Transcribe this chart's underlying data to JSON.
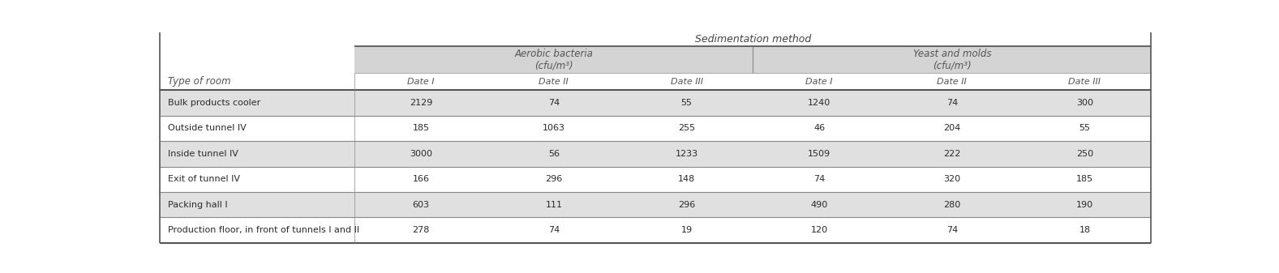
{
  "title": "Sedimentation method",
  "group_headers": [
    "Aerobic bacteria\n(cfu/m³)",
    "Yeast and molds\n(cfu/m³)"
  ],
  "date_headers": [
    "Date I",
    "Date II",
    "Date III",
    "Date I",
    "Date II",
    "Date III"
  ],
  "row_label": "Type of room",
  "rows": [
    {
      "name": "Bulk products cooler",
      "values": [
        "2129",
        "74",
        "55",
        "1240",
        "74",
        "300"
      ],
      "shaded": true
    },
    {
      "name": "Outside tunnel IV",
      "values": [
        "185",
        "1063",
        "255",
        "46",
        "204",
        "55"
      ],
      "shaded": false
    },
    {
      "name": "Inside tunnel IV",
      "values": [
        "3000",
        "56",
        "1233",
        "1509",
        "222",
        "250"
      ],
      "shaded": true
    },
    {
      "name": "Exit of tunnel IV",
      "values": [
        "166",
        "296",
        "148",
        "74",
        "320",
        "185"
      ],
      "shaded": false
    },
    {
      "name": "Packing hall I",
      "values": [
        "603",
        "111",
        "296",
        "490",
        "280",
        "190"
      ],
      "shaded": true
    },
    {
      "name": "Production floor, in front of tunnels I and II",
      "values": [
        "278",
        "74",
        "19",
        "120",
        "74",
        "18"
      ],
      "shaded": false
    }
  ],
  "header_bg": "#d4d4d4",
  "row_shaded_bg": "#e0e0e0",
  "row_unshaded_bg": "#ffffff",
  "border_color": "#888888",
  "thick_border_color": "#555555",
  "text_color": "#2a2a2a",
  "header_text_color": "#555555",
  "title_text_color": "#444444",
  "figsize": [
    15.77,
    3.37
  ],
  "dpi": 100
}
